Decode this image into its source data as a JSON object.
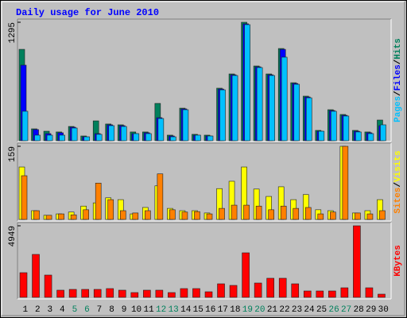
{
  "legend_separator": "/",
  "chart_data": [
    {
      "type": "bar",
      "title": "Daily usage for June 2010",
      "ylim": [
        0,
        1295
      ],
      "yticks": [
        1295
      ],
      "series": [
        {
          "name": "Hits",
          "color": "#00805c",
          "values": [
            999,
            130,
            104,
            96,
            156,
            52,
            217,
            183,
            174,
            96,
            96,
            408,
            61,
            356,
            70,
            61,
            574,
            730,
            1295,
            817,
            730,
            1008,
            634,
            487,
            113,
            339,
            287,
            113,
            96,
            226
          ]
        },
        {
          "name": "Files",
          "color": "#0000ff",
          "values": [
            826,
            122,
            78,
            87,
            148,
            43,
            78,
            174,
            165,
            78,
            87,
            252,
            52,
            348,
            61,
            52,
            565,
            721,
            1278,
            808,
            721,
            999,
            626,
            478,
            104,
            330,
            278,
            104,
            87,
            165
          ]
        },
        {
          "name": "Pages",
          "color": "#00c0ff",
          "values": [
            322,
            61,
            61,
            61,
            139,
            43,
            70,
            165,
            156,
            78,
            78,
            243,
            43,
            339,
            61,
            52,
            556,
            713,
            1269,
            800,
            713,
            913,
            617,
            469,
            104,
            322,
            270,
            96,
            78,
            174
          ]
        }
      ]
    },
    {
      "type": "bar",
      "ylim": [
        0,
        159
      ],
      "yticks": [
        159
      ],
      "series": [
        {
          "name": "Visits",
          "color": "#ffff00",
          "values": [
            114,
            19,
            9,
            12,
            16,
            29,
            36,
            47,
            43,
            12,
            26,
            73,
            24,
            19,
            19,
            14,
            67,
            83,
            114,
            66,
            50,
            71,
            43,
            54,
            21,
            19,
            159,
            14,
            19,
            43
          ]
        },
        {
          "name": "Sites",
          "color": "#ff8000",
          "values": [
            95,
            19,
            9,
            12,
            10,
            21,
            79,
            43,
            19,
            14,
            19,
            99,
            21,
            16,
            17,
            12,
            24,
            31,
            31,
            29,
            21,
            29,
            24,
            26,
            12,
            16,
            159,
            14,
            12,
            19
          ]
        }
      ]
    },
    {
      "type": "bar",
      "ylim": [
        0,
        4949
      ],
      "yticks": [
        4949
      ],
      "categories": [
        "1",
        "2",
        "3",
        "4",
        "5",
        "6",
        "7",
        "8",
        "9",
        "10",
        "11",
        "12",
        "13",
        "14",
        "15",
        "16",
        "17",
        "18",
        "19",
        "20",
        "21",
        "22",
        "23",
        "24",
        "25",
        "26",
        "27",
        "28",
        "29",
        "30"
      ],
      "highlighted_categories": [
        "5",
        "6",
        "12",
        "13",
        "19",
        "20",
        "26",
        "27"
      ],
      "highlight_color": "#00805c",
      "series": [
        {
          "name": "KBytes",
          "color": "#ff0000",
          "values": [
            1705,
            2969,
            1540,
            495,
            550,
            550,
            550,
            605,
            495,
            330,
            495,
            495,
            330,
            605,
            605,
            385,
            935,
            825,
            3079,
            990,
            1320,
            1320,
            935,
            440,
            440,
            440,
            660,
            4949,
            660,
            220
          ]
        }
      ]
    }
  ]
}
